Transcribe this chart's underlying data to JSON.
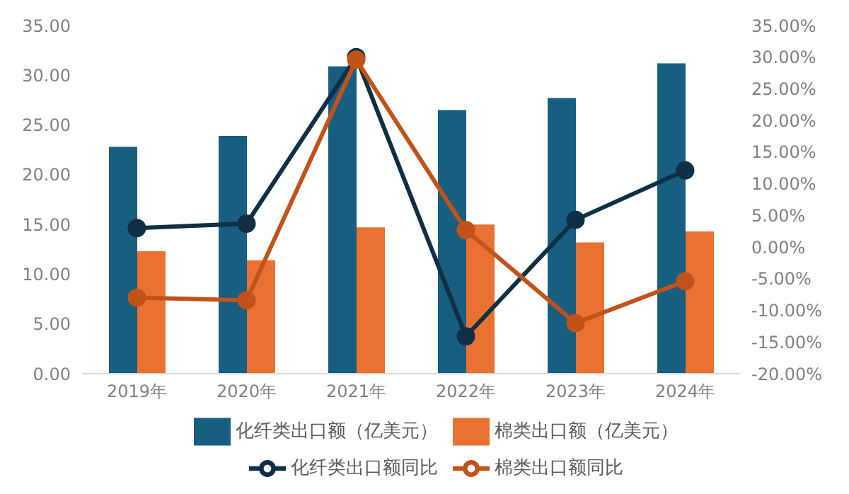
{
  "chart_data": {
    "type": "bar",
    "categories": [
      "2019年",
      "2020年",
      "2021年",
      "2022年",
      "2023年",
      "2024年"
    ],
    "series": [
      {
        "name": "化纤类出口额（亿美元）",
        "color": "#175e80",
        "values": [
          22.8,
          23.9,
          30.9,
          26.5,
          27.7,
          31.2
        ]
      },
      {
        "name": "棉类出口额（亿美元）",
        "color": "#e97132",
        "values": [
          12.3,
          11.4,
          14.7,
          15.0,
          13.2,
          14.3
        ]
      },
      {
        "name": "化纤类出口额同比",
        "type": "line",
        "axis": "y2",
        "color": "#0e2f44",
        "values": [
          3.0,
          3.7,
          30.0,
          -14.1,
          4.3,
          12.1
        ]
      },
      {
        "name": "棉类出口额同比",
        "type": "line",
        "axis": "y2",
        "color": "#c0531a",
        "values": [
          -8.0,
          -8.4,
          29.6,
          2.7,
          -12.0,
          -5.4
        ]
      }
    ],
    "ylim": [
      0,
      35
    ],
    "yticks": [
      {
        "value": 0,
        "label": "0.00"
      },
      {
        "value": 5,
        "label": "5.00"
      },
      {
        "value": 10,
        "label": "10.00"
      },
      {
        "value": 15,
        "label": "15.00"
      },
      {
        "value": 20,
        "label": "20.00"
      },
      {
        "value": 25,
        "label": "25.00"
      },
      {
        "value": 30,
        "label": "30.00"
      },
      {
        "value": 35,
        "label": "35.00"
      }
    ],
    "y2lim": [
      -20,
      35
    ],
    "y2ticks": [
      {
        "value": -20,
        "label": "-20.00%"
      },
      {
        "value": -15,
        "label": "-15.00%"
      },
      {
        "value": -10,
        "label": "-10.00%"
      },
      {
        "value": -5,
        "label": "-5.00%"
      },
      {
        "value": 0,
        "label": "0.00%"
      },
      {
        "value": 5,
        "label": "5.00%"
      },
      {
        "value": 10,
        "label": "10.00%"
      },
      {
        "value": 15,
        "label": "15.00%"
      },
      {
        "value": 20,
        "label": "20.00%"
      },
      {
        "value": 25,
        "label": "25.00%"
      },
      {
        "value": 30,
        "label": "30.00%"
      },
      {
        "value": 35,
        "label": "35.00%"
      }
    ],
    "grid": false,
    "legend": "bottom",
    "marker": "circle",
    "line_style": "solid"
  }
}
